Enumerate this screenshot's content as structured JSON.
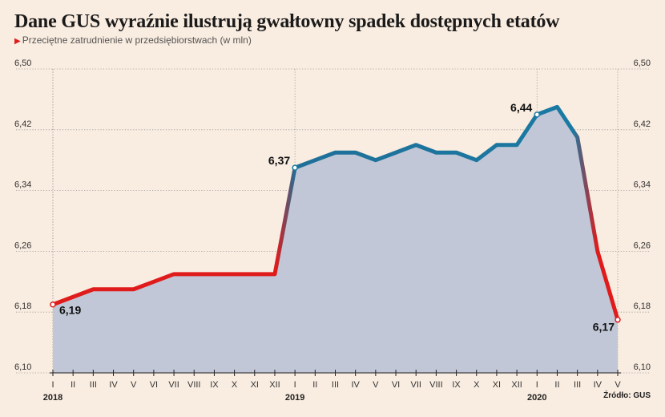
{
  "title": "Dane GUS wyraźnie ilustrują gwałtowny spadek dostępnych etatów",
  "subtitle": "Przeciętne zatrudnienie w przedsiębiorstwach (w mln)",
  "source": "Źródło: GUS",
  "colors": {
    "background": "#f9ece0",
    "area_fill": "#c1c7d6",
    "red": "#e01b1b",
    "blue": "#1a7aa3",
    "grid": "#9a9a9a"
  },
  "chart_data": {
    "type": "area",
    "x": [
      "I",
      "II",
      "III",
      "IV",
      "V",
      "VI",
      "VII",
      "VIII",
      "IX",
      "X",
      "XI",
      "XII",
      "I",
      "II",
      "III",
      "IV",
      "V",
      "VI",
      "VII",
      "VIII",
      "IX",
      "X",
      "XI",
      "XII",
      "I",
      "II",
      "III",
      "IV",
      "V"
    ],
    "years": [
      {
        "label": "2018",
        "index": 0
      },
      {
        "label": "2019",
        "index": 12
      },
      {
        "label": "2020",
        "index": 24
      }
    ],
    "series": [
      {
        "values": [
          6.19,
          6.2,
          6.21,
          6.21,
          6.21,
          6.22,
          6.23,
          6.23,
          6.23,
          6.23,
          6.23,
          6.23,
          6.37,
          6.38,
          6.39,
          6.39,
          6.38,
          6.39,
          6.4,
          6.39,
          6.39,
          6.38,
          6.4,
          6.4,
          6.44,
          6.45,
          6.41,
          6.26,
          6.17
        ]
      }
    ],
    "ylim": [
      6.1,
      6.5
    ],
    "yticks": [
      "6,10",
      "6,18",
      "6,26",
      "6,34",
      "6,42",
      "6,50"
    ],
    "ytick_values": [
      6.1,
      6.18,
      6.26,
      6.34,
      6.42,
      6.5
    ],
    "annotations": [
      {
        "index": 0,
        "label": "6,19",
        "position": "below-right"
      },
      {
        "index": 12,
        "label": "6,37",
        "position": "left"
      },
      {
        "index": 24,
        "label": "6,44",
        "position": "left"
      },
      {
        "index": 28,
        "label": "6,17",
        "position": "left"
      }
    ],
    "grid": true
  }
}
